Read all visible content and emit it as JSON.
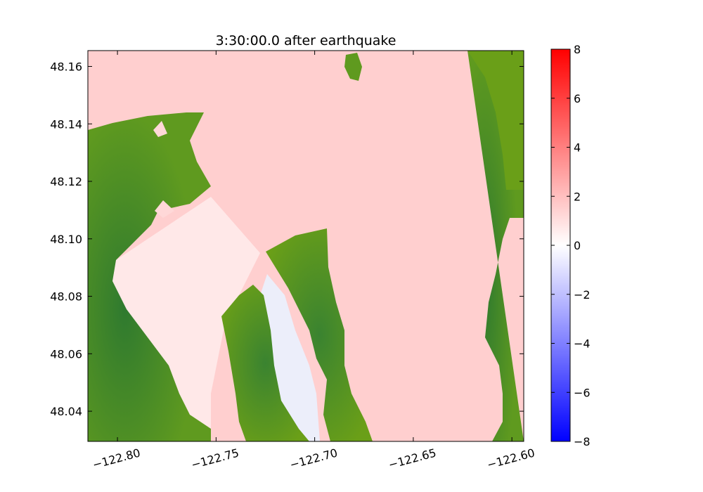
{
  "chart_data": {
    "type": "heatmap",
    "title": "3:30:00.0 after earthquake",
    "xlabel": "",
    "ylabel": "",
    "xlim": [
      -122.815,
      -122.594
    ],
    "ylim": [
      48.0295,
      48.1655
    ],
    "x_ticks": [
      -122.8,
      -122.75,
      -122.7,
      -122.65,
      -122.6
    ],
    "x_tick_labels": [
      "−122.80",
      "−122.75",
      "−122.70",
      "−122.65",
      "−122.60"
    ],
    "y_ticks": [
      48.04,
      48.06,
      48.08,
      48.1,
      48.12,
      48.14,
      48.16
    ],
    "y_tick_labels": [
      "48.04",
      "48.06",
      "48.08",
      "48.10",
      "48.12",
      "48.14",
      "48.16"
    ],
    "grid": false,
    "colorbar": {
      "range": [
        -8,
        8
      ],
      "ticks": [
        -8,
        -6,
        -4,
        -2,
        0,
        2,
        4,
        6,
        8
      ],
      "tick_labels": [
        "−8",
        "−6",
        "−4",
        "−2",
        "0",
        "2",
        "4",
        "6",
        "8"
      ],
      "colors": [
        "#0000ff",
        "#ffffff",
        "#ff0000"
      ]
    },
    "field_description_values": {
      "water_surface_typical": 1.5,
      "inlet_south_typical": -0.5
    },
    "land_color": "#5f9a1f",
    "land_dark_color": "#2f7a2f",
    "water_color": "#ffd0d0"
  }
}
